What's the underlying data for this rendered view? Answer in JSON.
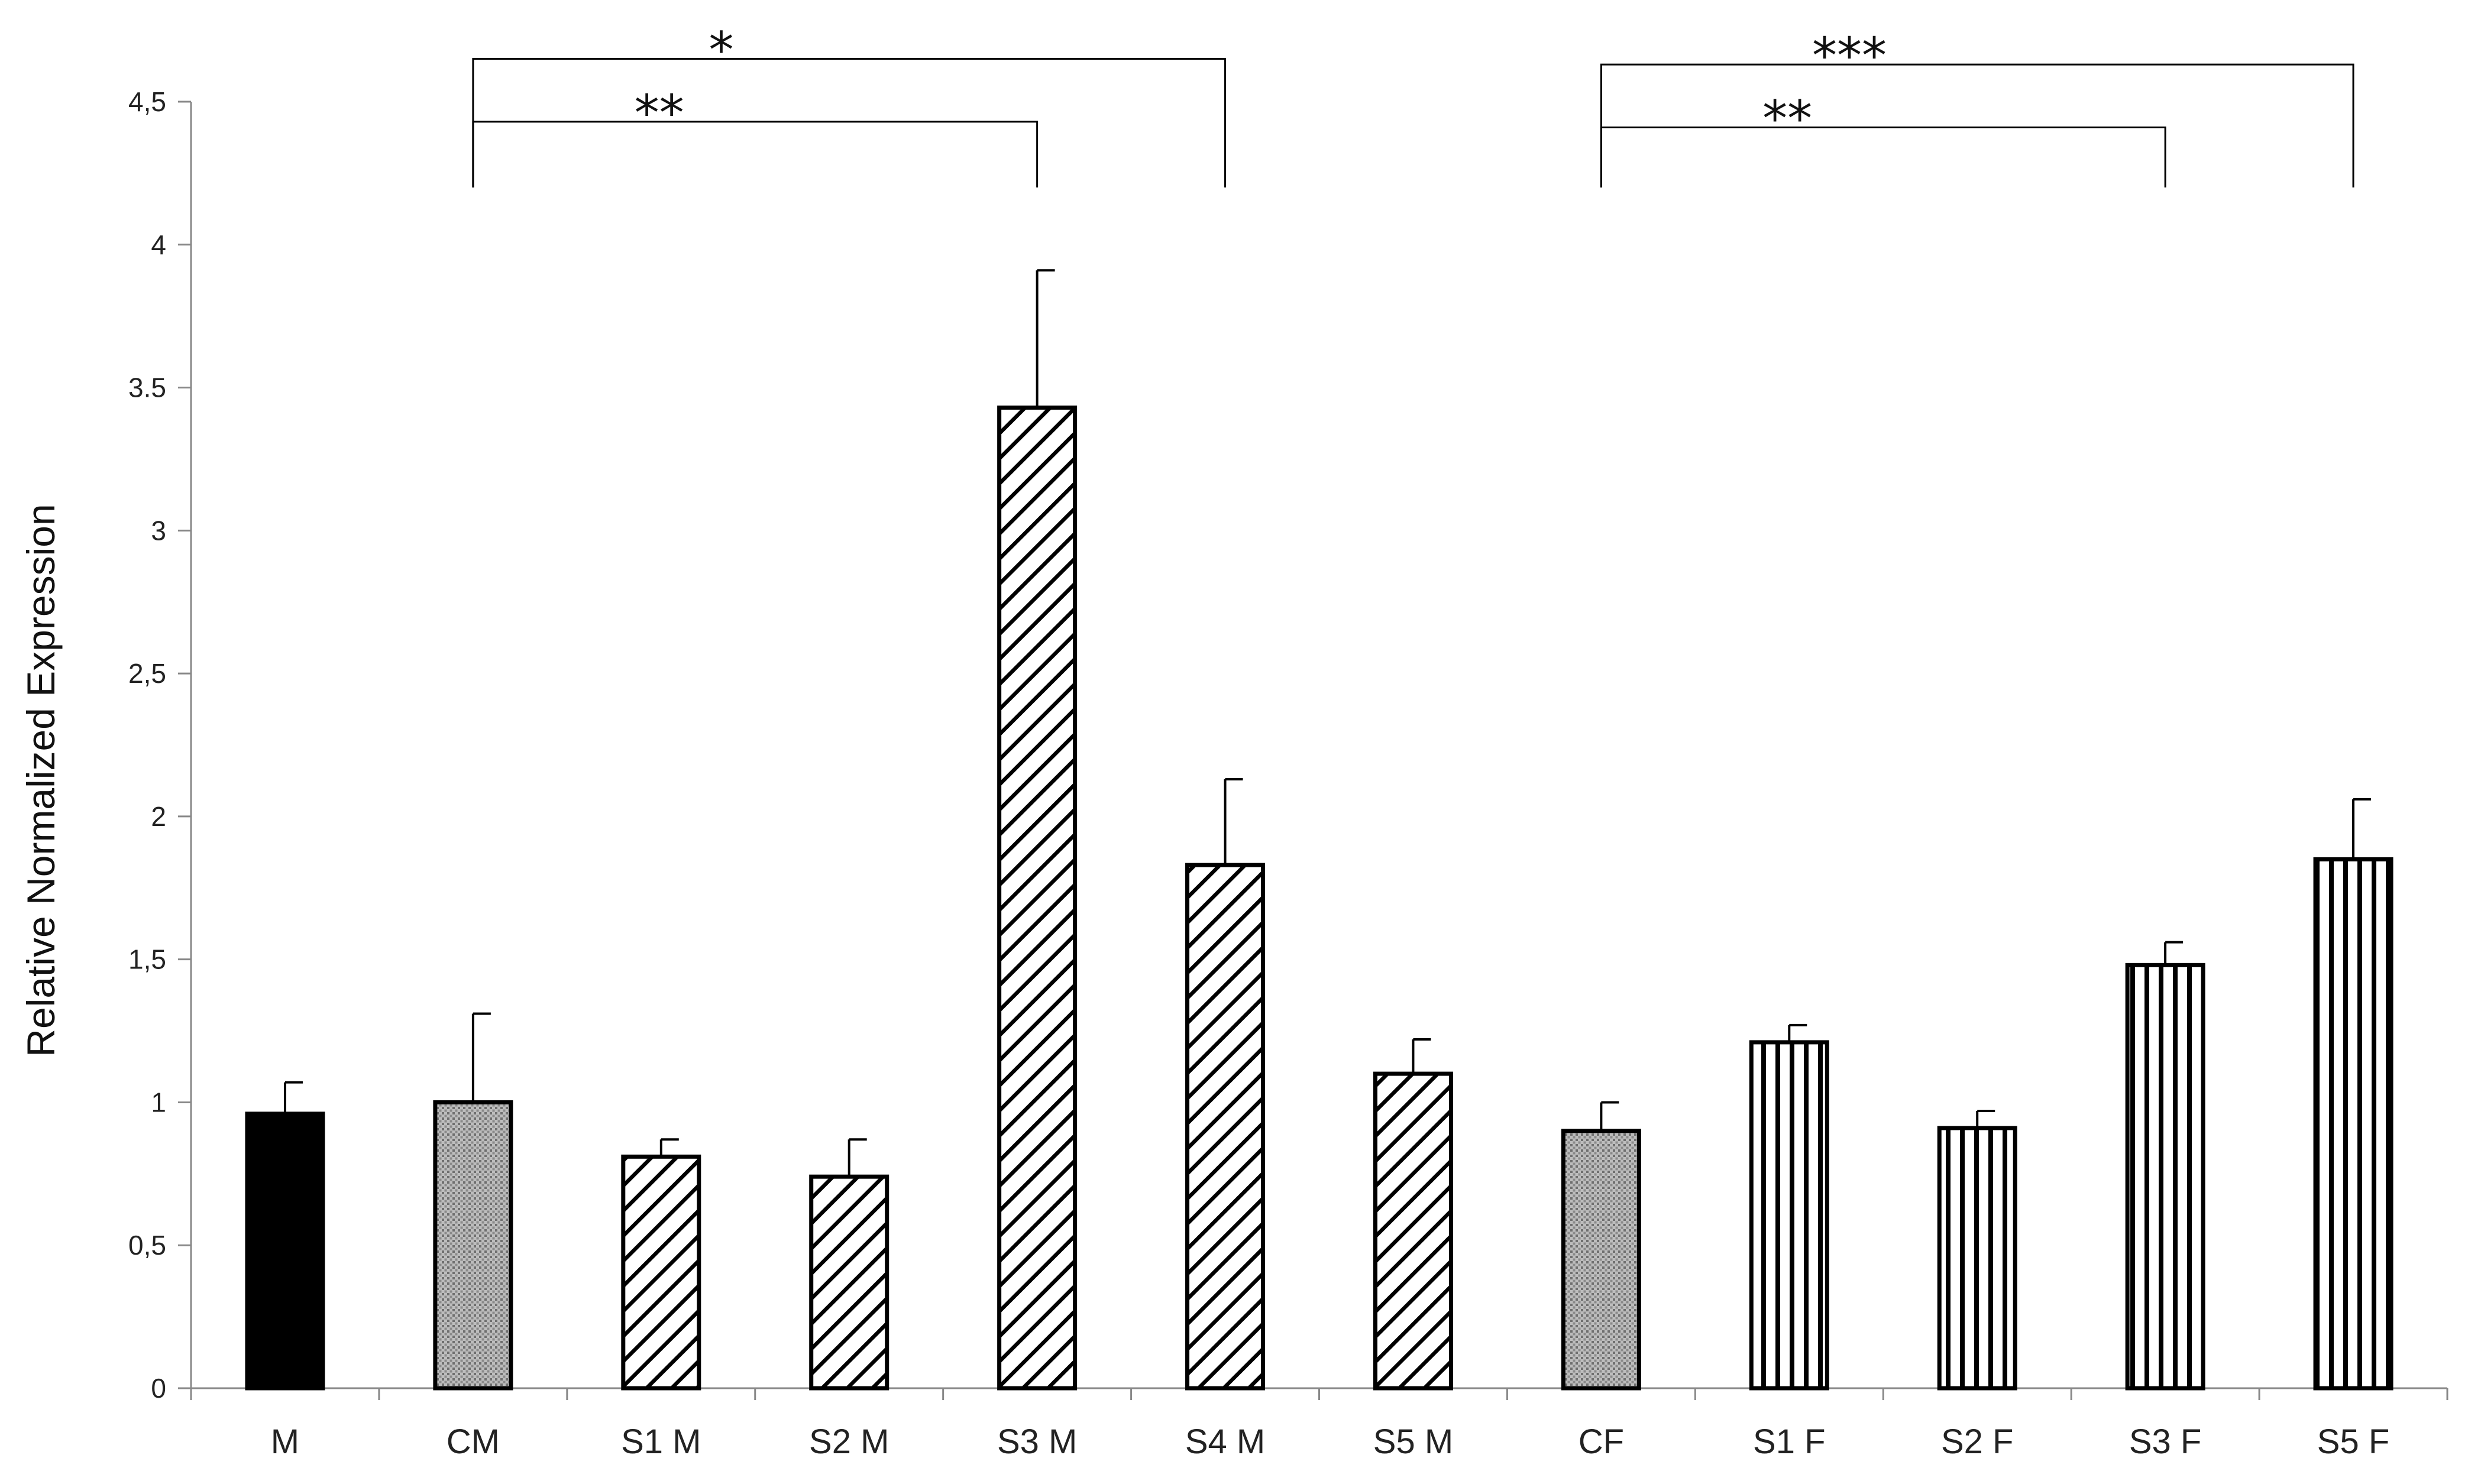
{
  "chart_data": {
    "type": "bar",
    "title": "",
    "xlabel": "",
    "ylabel": "Relative Normalized Expression",
    "ylim": [
      0,
      4.5
    ],
    "yticks": [
      {
        "value": 0,
        "label": "0"
      },
      {
        "value": 0.5,
        "label": "0,5"
      },
      {
        "value": 1,
        "label": "1"
      },
      {
        "value": 1.5,
        "label": "1,5"
      },
      {
        "value": 2,
        "label": "2"
      },
      {
        "value": 2.5,
        "label": "2,5"
      },
      {
        "value": 3,
        "label": "3"
      },
      {
        "value": 3.5,
        "label": "3.5"
      },
      {
        "value": 4,
        "label": "4"
      },
      {
        "value": 4.5,
        "label": "4,5"
      }
    ],
    "grid": false,
    "legend": "none",
    "categories": [
      "M",
      "CM",
      "S1 M",
      "S2 M",
      "S3 M",
      "S4 M",
      "S5 M",
      "CF",
      "S1 F",
      "S2 F",
      "S3 F",
      "S5 F"
    ],
    "values": [
      0.96,
      1.0,
      0.81,
      0.74,
      3.43,
      1.83,
      1.1,
      0.9,
      1.21,
      0.91,
      1.48,
      1.85
    ],
    "errors": [
      0.11,
      0.31,
      0.06,
      0.13,
      0.48,
      0.3,
      0.12,
      0.1,
      0.06,
      0.06,
      0.08,
      0.21
    ],
    "patterns": [
      "solid-black",
      "dots",
      "diagonal",
      "diagonal",
      "diagonal",
      "diagonal",
      "diagonal",
      "dots",
      "vertical",
      "vertical",
      "vertical",
      "vertical"
    ],
    "significance": [
      {
        "from": "CM",
        "to": "S4 M",
        "label": "*",
        "level": 4.65
      },
      {
        "from": "CM",
        "to": "S3 M",
        "label": "**",
        "level": 4.43
      },
      {
        "from": "CF",
        "to": "S5 F",
        "label": "***",
        "level": 4.63
      },
      {
        "from": "CF",
        "to": "S3 F",
        "label": "**",
        "level": 4.41
      }
    ],
    "colors": {
      "bar_stroke": "#000000",
      "axis": "#888888",
      "text": "#222222"
    }
  }
}
